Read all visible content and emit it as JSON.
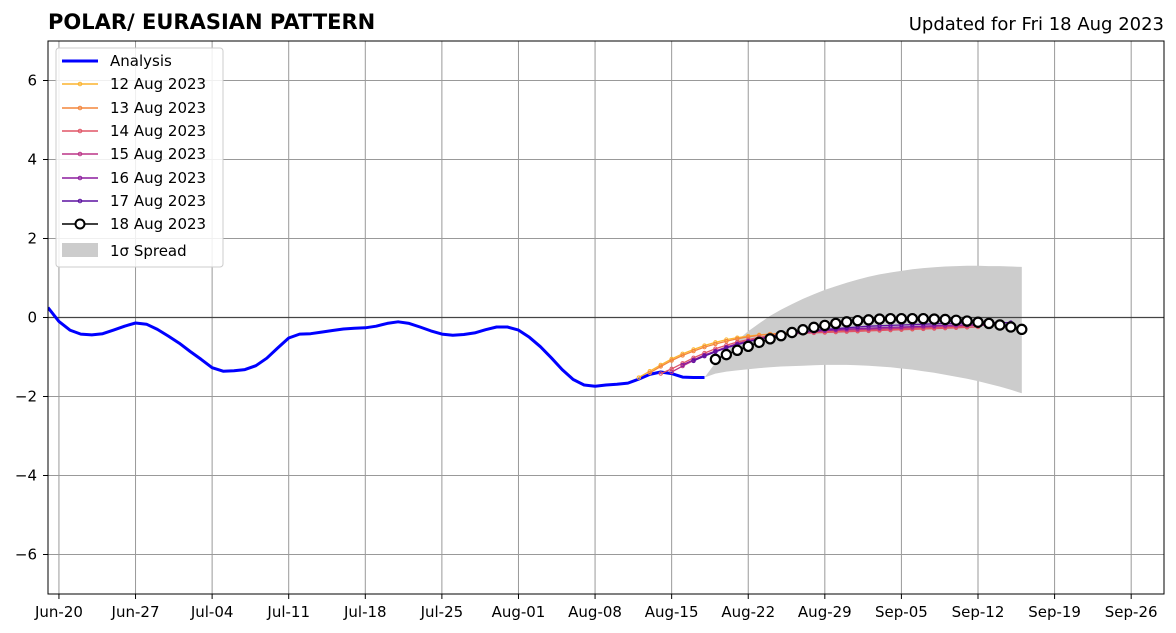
{
  "chart_data": {
    "type": "line",
    "title": "POLAR/ EURASIAN  PATTERN",
    "subtitle": "Updated for Fri 18 Aug 2023",
    "x_ticks": [
      "Jun-20",
      "Jun-27",
      "Jul-04",
      "Jul-11",
      "Jul-18",
      "Jul-25",
      "Aug-01",
      "Aug-08",
      "Aug-15",
      "Aug-22",
      "Aug-29",
      "Sep-05",
      "Sep-12",
      "Sep-19",
      "Sep-26"
    ],
    "y_ticks": [
      "6",
      "4",
      "2",
      "0",
      "−2",
      "−4",
      "−6"
    ],
    "xlim": [
      "2023-06-19",
      "2023-09-29"
    ],
    "ylim": [
      -7,
      7
    ],
    "grid": true,
    "zero_line": true,
    "legend_position": "upper-left",
    "colors": {
      "analysis": "#0000ff",
      "spread": "#cccccc",
      "12 Aug 2023": "#fcb42f",
      "13 Aug 2023": "#f3853c",
      "14 Aug 2023": "#e05567",
      "15 Aug 2023": "#bc3587",
      "16 Aug 2023": "#8c1c9e",
      "17 Aug 2023": "#5c10a0",
      "18 Aug 2023": "#000000"
    },
    "legend": {
      "analysis": "Analysis",
      "f12": "12 Aug 2023",
      "f13": "13 Aug 2023",
      "f14": "14 Aug 2023",
      "f15": "15 Aug 2023",
      "f16": "16 Aug 2023",
      "f17": "17 Aug 2023",
      "f18": "18 Aug 2023",
      "spread": "1σ Spread"
    },
    "analysis": {
      "start_date": "2023-06-19",
      "values": [
        0.25,
        -0.1,
        -0.32,
        -0.42,
        -0.44,
        -0.41,
        -0.32,
        -0.22,
        -0.14,
        -0.17,
        -0.3,
        -0.47,
        -0.65,
        -0.86,
        -1.06,
        -1.27,
        -1.36,
        -1.35,
        -1.32,
        -1.22,
        -1.03,
        -0.77,
        -0.52,
        -0.42,
        -0.41,
        -0.37,
        -0.33,
        -0.29,
        -0.27,
        -0.26,
        -0.22,
        -0.15,
        -0.11,
        -0.15,
        -0.24,
        -0.34,
        -0.42,
        -0.45,
        -0.43,
        -0.39,
        -0.31,
        -0.24,
        -0.24,
        -0.32,
        -0.5,
        -0.74,
        -1.02,
        -1.32,
        -1.57,
        -1.71,
        -1.74,
        -1.71,
        -1.69,
        -1.66,
        -1.56,
        -1.44,
        -1.38,
        -1.42,
        -1.51,
        -1.52,
        -1.52
      ]
    },
    "spread": {
      "start_date": "2023-08-18",
      "upper": [
        -1.52,
        -1.15,
        -0.85,
        -0.58,
        -0.35,
        -0.15,
        0.04,
        0.2,
        0.34,
        0.47,
        0.59,
        0.7,
        0.79,
        0.88,
        0.96,
        1.03,
        1.09,
        1.14,
        1.18,
        1.22,
        1.25,
        1.27,
        1.29,
        1.3,
        1.31,
        1.31,
        1.3,
        1.3,
        1.29,
        1.28
      ],
      "lower": [
        -1.52,
        -1.42,
        -1.37,
        -1.34,
        -1.31,
        -1.28,
        -1.26,
        -1.24,
        -1.23,
        -1.22,
        -1.21,
        -1.2,
        -1.2,
        -1.2,
        -1.21,
        -1.22,
        -1.24,
        -1.26,
        -1.29,
        -1.32,
        -1.36,
        -1.4,
        -1.45,
        -1.5,
        -1.55,
        -1.61,
        -1.68,
        -1.75,
        -1.83,
        -1.92
      ]
    },
    "forecasts": [
      {
        "name": "12 Aug 2023",
        "start_date": "2023-08-12",
        "values": [
          -1.52,
          -1.36,
          -1.2,
          -1.05,
          -0.92,
          -0.81,
          -0.71,
          -0.63,
          -0.56,
          -0.51,
          -0.47,
          -0.44,
          -0.42,
          -0.4,
          -0.38,
          -0.37,
          -0.36,
          -0.35,
          -0.34,
          -0.33,
          -0.32,
          -0.31,
          -0.3,
          -0.29,
          -0.28,
          -0.27,
          -0.26,
          -0.25,
          -0.24,
          -0.23
        ]
      },
      {
        "name": "13 Aug 2023",
        "start_date": "2023-08-13",
        "values": [
          -1.4,
          -1.24,
          -1.09,
          -0.96,
          -0.85,
          -0.75,
          -0.67,
          -0.6,
          -0.54,
          -0.49,
          -0.45,
          -0.42,
          -0.4,
          -0.39,
          -0.38,
          -0.37,
          -0.36,
          -0.35,
          -0.34,
          -0.33,
          -0.32,
          -0.31,
          -0.3,
          -0.29,
          -0.28,
          -0.27,
          -0.26,
          -0.25,
          -0.24,
          -0.23
        ]
      },
      {
        "name": "14 Aug 2023",
        "start_date": "2023-08-14",
        "values": [
          -1.42,
          -1.3,
          -1.16,
          -1.02,
          -0.9,
          -0.79,
          -0.7,
          -0.62,
          -0.56,
          -0.5,
          -0.46,
          -0.43,
          -0.41,
          -0.4,
          -0.39,
          -0.38,
          -0.37,
          -0.36,
          -0.35,
          -0.34,
          -0.33,
          -0.32,
          -0.31,
          -0.3,
          -0.29,
          -0.28,
          -0.27,
          -0.26,
          -0.25,
          -0.24
        ]
      },
      {
        "name": "15 Aug 2023",
        "start_date": "2023-08-15",
        "values": [
          -1.38,
          -1.23,
          -1.09,
          -0.96,
          -0.85,
          -0.75,
          -0.66,
          -0.59,
          -0.53,
          -0.48,
          -0.44,
          -0.41,
          -0.38,
          -0.36,
          -0.34,
          -0.33,
          -0.32,
          -0.31,
          -0.3,
          -0.29,
          -0.28,
          -0.27,
          -0.26,
          -0.25,
          -0.24,
          -0.23,
          -0.22,
          -0.21,
          -0.2,
          -0.2
        ]
      },
      {
        "name": "16 Aug 2023",
        "start_date": "2023-08-16",
        "values": [
          -1.2,
          -1.07,
          -0.95,
          -0.85,
          -0.75,
          -0.67,
          -0.6,
          -0.54,
          -0.49,
          -0.44,
          -0.41,
          -0.38,
          -0.35,
          -0.33,
          -0.31,
          -0.29,
          -0.28,
          -0.27,
          -0.26,
          -0.25,
          -0.24,
          -0.23,
          -0.22,
          -0.21,
          -0.2,
          -0.19,
          -0.19,
          -0.18,
          -0.18,
          -0.17
        ]
      },
      {
        "name": "17 Aug 2023",
        "start_date": "2023-08-17",
        "values": [
          -1.1,
          -0.98,
          -0.87,
          -0.77,
          -0.69,
          -0.61,
          -0.55,
          -0.49,
          -0.44,
          -0.4,
          -0.36,
          -0.33,
          -0.3,
          -0.28,
          -0.26,
          -0.24,
          -0.22,
          -0.21,
          -0.2,
          -0.19,
          -0.18,
          -0.17,
          -0.16,
          -0.15,
          -0.15,
          -0.14,
          -0.14,
          -0.13,
          -0.13,
          -0.13
        ]
      },
      {
        "name": "18 Aug 2023",
        "start_date": "2023-08-19",
        "values": [
          -1.06,
          -0.94,
          -0.83,
          -0.73,
          -0.63,
          -0.54,
          -0.46,
          -0.38,
          -0.31,
          -0.25,
          -0.2,
          -0.15,
          -0.11,
          -0.08,
          -0.06,
          -0.04,
          -0.03,
          -0.03,
          -0.03,
          -0.03,
          -0.04,
          -0.05,
          -0.07,
          -0.09,
          -0.12,
          -0.15,
          -0.19,
          -0.24,
          -0.3
        ]
      }
    ]
  }
}
